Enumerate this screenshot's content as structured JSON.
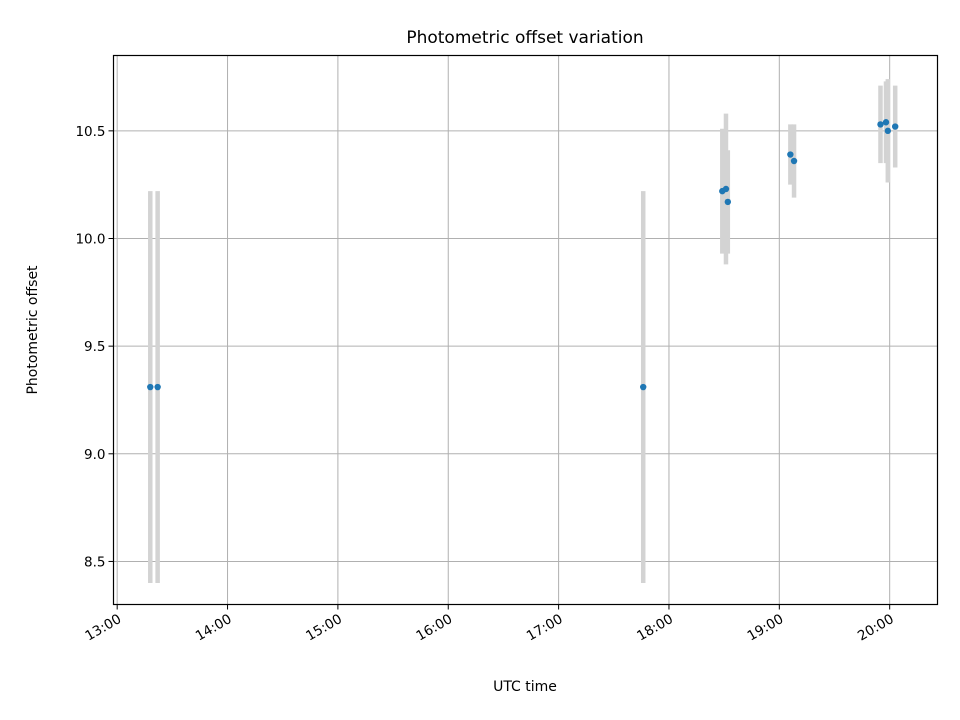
{
  "chart_data": {
    "type": "scatter",
    "title": "Photometric offset variation",
    "xlabel": "UTC time",
    "ylabel": "Photometric offset",
    "x_ticks": [
      "13:00",
      "14:00",
      "15:00",
      "16:00",
      "17:00",
      "18:00",
      "19:00",
      "20:00"
    ],
    "y_ticks": [
      "8.5",
      "9.0",
      "9.5",
      "10.0",
      "10.5"
    ],
    "xlim": [
      "12:58",
      "20:26"
    ],
    "ylim": [
      8.3,
      10.85
    ],
    "grid": true,
    "marker_color": "#1f77b4",
    "errorbar_color": "#d3d3d3",
    "points": [
      {
        "time": "13:18",
        "y": 9.31,
        "err": 0.91
      },
      {
        "time": "13:22",
        "y": 9.31,
        "err": 0.91
      },
      {
        "time": "17:46",
        "y": 9.31,
        "err": 0.91
      },
      {
        "time": "18:29",
        "y": 10.22,
        "err": 0.29
      },
      {
        "time": "18:31",
        "y": 10.23,
        "err": 0.35
      },
      {
        "time": "18:32",
        "y": 10.17,
        "err": 0.24
      },
      {
        "time": "19:06",
        "y": 10.39,
        "err": 0.14
      },
      {
        "time": "19:08",
        "y": 10.36,
        "err": 0.17
      },
      {
        "time": "19:55",
        "y": 10.53,
        "err": 0.18
      },
      {
        "time": "19:58",
        "y": 10.54,
        "err": 0.19
      },
      {
        "time": "19:59",
        "y": 10.5,
        "err": 0.24
      },
      {
        "time": "20:03",
        "y": 10.52,
        "err": 0.19
      }
    ]
  }
}
